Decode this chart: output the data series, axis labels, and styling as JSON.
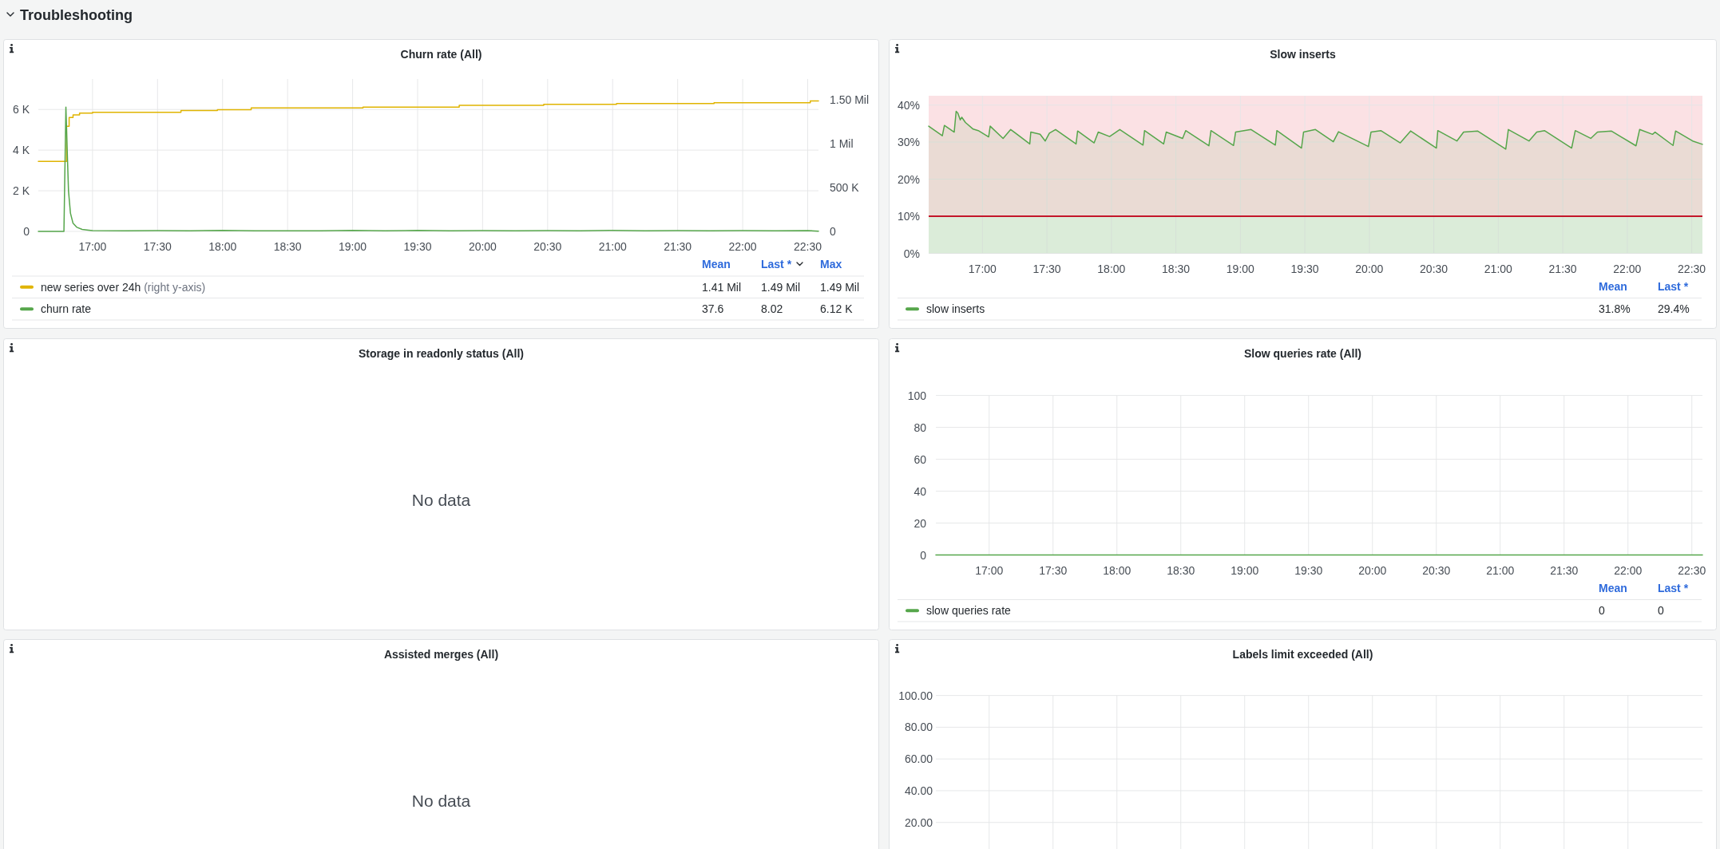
{
  "chart_data": [
    {
      "type": "other",
      "title": "Troubleshooting"
    },
    {
      "type": "line",
      "title": "Churn rate (All)",
      "xlim": [
        16.583,
        22.583
      ],
      "xticks": [
        {
          "value": 17,
          "label": "17:00"
        },
        {
          "value": 17.5,
          "label": "17:30"
        },
        {
          "value": 18,
          "label": "18:00"
        },
        {
          "value": 18.5,
          "label": "18:30"
        },
        {
          "value": 19,
          "label": "19:00"
        },
        {
          "value": 19.5,
          "label": "19:30"
        },
        {
          "value": 20,
          "label": "20:00"
        },
        {
          "value": 20.5,
          "label": "20:30"
        },
        {
          "value": 21,
          "label": "21:00"
        },
        {
          "value": 21.5,
          "label": "21:30"
        },
        {
          "value": 22,
          "label": "22:00"
        },
        {
          "value": 22.5,
          "label": "22:30"
        }
      ],
      "ylim": [
        0,
        7500
      ],
      "yticks": [
        0,
        {
          "value": 2000,
          "label": "2 K"
        },
        {
          "value": 4000,
          "label": "4 K"
        },
        {
          "value": 6000,
          "label": "6 K"
        }
      ],
      "y2lim": [
        0,
        1.74
      ],
      "y2ticks": [
        0,
        {
          "value": 0.5,
          "label": "500 K"
        },
        {
          "value": 1,
          "label": "1 Mil"
        },
        {
          "value": 1.5,
          "label": "1.50 Mil"
        }
      ],
      "grid": true,
      "legend": "bottom",
      "series": [
        {
          "name": "new series over 24h",
          "color": "#e0b400",
          "type": "step",
          "axis": "y2",
          "x": [
            16.583,
            16.79,
            16.8,
            16.82,
            16.85,
            16.9,
            17.0,
            17.68,
            17.96,
            18.22,
            19.08,
            19.82,
            20.47,
            21.03,
            21.78,
            22.52,
            22.583
          ],
          "values": [
            0.8,
            0.8,
            1.2,
            1.3,
            1.33,
            1.35,
            1.36,
            1.38,
            1.39,
            1.41,
            1.42,
            1.44,
            1.45,
            1.46,
            1.47,
            1.49,
            1.49
          ]
        },
        {
          "name": "churn rate",
          "color": "#56a64b",
          "x": [
            16.583,
            16.78,
            16.795,
            16.805,
            16.815,
            16.83,
            16.85,
            16.88,
            16.92,
            16.97,
            17.0,
            17.25,
            17.5,
            17.75,
            18.0,
            18.25,
            18.5,
            18.75,
            19.0,
            19.25,
            19.5,
            19.75,
            20.0,
            20.25,
            20.5,
            20.75,
            21.0,
            21.25,
            21.5,
            21.75,
            22.0,
            22.25,
            22.5,
            22.583
          ],
          "values": [
            0,
            0,
            6120,
            4000,
            2000,
            900,
            400,
            200,
            100,
            60,
            40,
            30,
            40,
            30,
            50,
            30,
            30,
            30,
            50,
            30,
            50,
            30,
            40,
            30,
            40,
            30,
            50,
            30,
            40,
            30,
            40,
            30,
            40,
            10
          ]
        }
      ],
      "annotations": [
        "Mean",
        "Last *",
        "Max",
        "1.41 Mil",
        "1.49 Mil",
        "1.49 Mil",
        "37.6",
        "8.02",
        "6.12 K",
        "(right y-axis)"
      ]
    },
    {
      "type": "area",
      "title": "Slow inserts",
      "xlim": [
        16.583,
        22.583
      ],
      "xticks": [
        {
          "value": 17,
          "label": "17:00"
        },
        {
          "value": 17.5,
          "label": "17:30"
        },
        {
          "value": 18,
          "label": "18:00"
        },
        {
          "value": 18.5,
          "label": "18:30"
        },
        {
          "value": 19,
          "label": "19:00"
        },
        {
          "value": 19.5,
          "label": "19:30"
        },
        {
          "value": 20,
          "label": "20:00"
        },
        {
          "value": 20.5,
          "label": "20:30"
        },
        {
          "value": 21,
          "label": "21:00"
        },
        {
          "value": 21.5,
          "label": "21:30"
        },
        {
          "value": 22,
          "label": "22:00"
        },
        {
          "value": 22.5,
          "label": "22:30"
        }
      ],
      "ylim": [
        0,
        42.5
      ],
      "yticks": [
        {
          "value": 0,
          "label": "0%"
        },
        {
          "value": 10,
          "label": "10%"
        },
        {
          "value": 20,
          "label": "20%"
        },
        {
          "value": 30,
          "label": "30%"
        },
        {
          "value": 40,
          "label": "40%"
        }
      ],
      "grid": true,
      "legend": "bottom",
      "bands": [
        {
          "axis": "y",
          "from": 10,
          "to": 42.5,
          "color": "#fbe1e4"
        },
        {
          "axis": "y",
          "from": 0,
          "to": 10,
          "color": "#eaf4e9"
        }
      ],
      "ref_lines": [
        {
          "axis": "y",
          "value": 10,
          "color": "#c4162a"
        }
      ],
      "series": [
        {
          "name": "slow inserts",
          "color": "#56a64b",
          "x": [
            16.583,
            16.689,
            16.705,
            16.781,
            16.796,
            16.809,
            16.828,
            16.84,
            16.868,
            16.928,
            16.968,
            17.048,
            17.06,
            17.16,
            17.219,
            17.367,
            17.375,
            17.447,
            17.487,
            17.519,
            17.567,
            17.726,
            17.738,
            17.866,
            17.898,
            17.986,
            18.065,
            18.245,
            18.257,
            18.405,
            18.425,
            18.552,
            18.576,
            18.756,
            18.772,
            18.947,
            18.963,
            19.083,
            19.271,
            19.283,
            19.474,
            19.49,
            19.582,
            19.721,
            19.761,
            19.993,
            20.013,
            20.089,
            20.24,
            20.32,
            20.52,
            20.531,
            20.679,
            20.731,
            20.839,
            21.058,
            21.078,
            21.238,
            21.298,
            21.358,
            21.569,
            21.597,
            21.717,
            21.769,
            21.876,
            22.068,
            22.096,
            22.196,
            22.216,
            22.355,
            22.375,
            22.507,
            22.583
          ],
          "values": [
            34.3,
            31.7,
            34.5,
            32.7,
            38.3,
            37.8,
            36.0,
            36.7,
            35.3,
            33.5,
            33.1,
            31.4,
            34.3,
            31.0,
            33.4,
            29.5,
            32.7,
            32.1,
            30.3,
            32.4,
            33.4,
            29.5,
            33.0,
            29.8,
            32.7,
            31.5,
            33.4,
            29.2,
            33.1,
            29.5,
            32.7,
            31.0,
            33.1,
            29.0,
            33.1,
            29.1,
            32.7,
            33.4,
            29.2,
            33.1,
            28.4,
            32.7,
            33.4,
            30.1,
            32.8,
            28.8,
            32.7,
            33.1,
            29.8,
            33.0,
            28.4,
            33.1,
            30.3,
            32.7,
            33.0,
            28.1,
            33.4,
            30.3,
            32.7,
            33.1,
            28.4,
            33.1,
            31.0,
            32.7,
            33.0,
            29.0,
            33.4,
            32.1,
            32.7,
            29.1,
            33.0,
            30.3,
            29.4
          ]
        }
      ],
      "annotations": [
        "Mean",
        "Last *",
        "31.8%",
        "29.4%"
      ]
    },
    {
      "type": "other",
      "title": "Storage in readonly status (All)",
      "annotations": [
        "No data"
      ]
    },
    {
      "type": "line",
      "title": "Slow queries rate (All)",
      "xlim": [
        16.583,
        22.583
      ],
      "xticks": [
        {
          "value": 17,
          "label": "17:00"
        },
        {
          "value": 17.5,
          "label": "17:30"
        },
        {
          "value": 18,
          "label": "18:00"
        },
        {
          "value": 18.5,
          "label": "18:30"
        },
        {
          "value": 19,
          "label": "19:00"
        },
        {
          "value": 19.5,
          "label": "19:30"
        },
        {
          "value": 20,
          "label": "20:00"
        },
        {
          "value": 20.5,
          "label": "20:30"
        },
        {
          "value": 21,
          "label": "21:00"
        },
        {
          "value": 21.5,
          "label": "21:30"
        },
        {
          "value": 22,
          "label": "22:00"
        },
        {
          "value": 22.5,
          "label": "22:30"
        }
      ],
      "ylim": [
        0,
        100
      ],
      "yticks": [
        0,
        20,
        40,
        60,
        80,
        100
      ],
      "grid": true,
      "legend": "bottom",
      "series": [
        {
          "name": "slow queries rate",
          "color": "#56a64b",
          "x": [
            16.583,
            22.583
          ],
          "values": [
            0,
            0
          ]
        }
      ],
      "annotations": [
        "Mean",
        "Last *",
        "0",
        "0"
      ]
    },
    {
      "type": "other",
      "title": "Assisted merges (All)",
      "annotations": [
        "No data"
      ]
    },
    {
      "type": "line",
      "title": "Labels limit exceeded (All)",
      "xlim": [
        16.583,
        22.583
      ],
      "xticks": [
        {
          "value": 17,
          "label": null
        },
        {
          "value": 17.5,
          "label": null
        },
        {
          "value": 18,
          "label": null
        },
        {
          "value": 18.5,
          "label": null
        },
        {
          "value": 19,
          "label": null
        },
        {
          "value": 19.5,
          "label": null
        },
        {
          "value": 20,
          "label": null
        },
        {
          "value": 20.5,
          "label": null
        },
        {
          "value": 21,
          "label": null
        },
        {
          "value": 21.5,
          "label": null
        },
        {
          "value": 22,
          "label": null
        }
      ],
      "ylim": [
        0,
        100
      ],
      "yticks": [
        {
          "value": 20,
          "label": "20.00"
        },
        {
          "value": 40,
          "label": "40.00"
        },
        {
          "value": 60,
          "label": "60.00"
        },
        {
          "value": 80,
          "label": "80.00"
        },
        {
          "value": 100,
          "label": "100.00"
        }
      ],
      "grid": true,
      "tick_labels": "y"
    }
  ]
}
